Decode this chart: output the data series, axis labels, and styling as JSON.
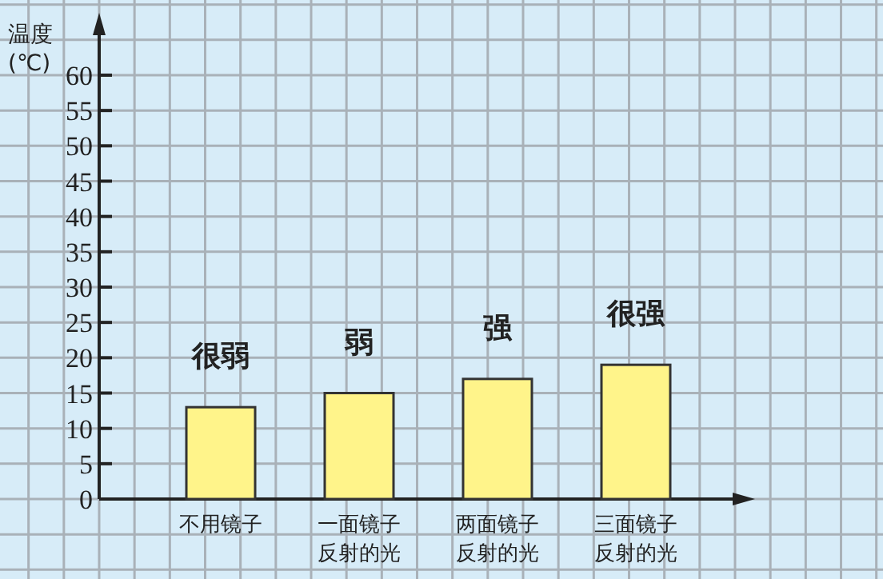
{
  "chart_data": {
    "type": "bar",
    "ylabel": "温度(℃)",
    "categories": [
      "不用镜子",
      "一面镜子反射的光",
      "两面镜子反射的光",
      "三面镜子反射的光"
    ],
    "values": [
      13,
      15,
      17,
      19
    ],
    "color": "#fff48a",
    "ylim": [
      0,
      60
    ],
    "yticks": [
      0,
      5,
      10,
      15,
      20,
      25,
      30,
      35,
      40,
      45,
      50,
      55,
      60
    ],
    "grid": true,
    "annotations": [
      {
        "text": "很弱",
        "x": "不用镜子",
        "y": 13
      },
      {
        "text": "弱",
        "x": "一面镜子反射的光",
        "y": 15
      },
      {
        "text": "强",
        "x": "两面镜子反射的光",
        "y": 17
      },
      {
        "text": "很强",
        "x": "三面镜子反射的光",
        "y": 19
      }
    ]
  }
}
